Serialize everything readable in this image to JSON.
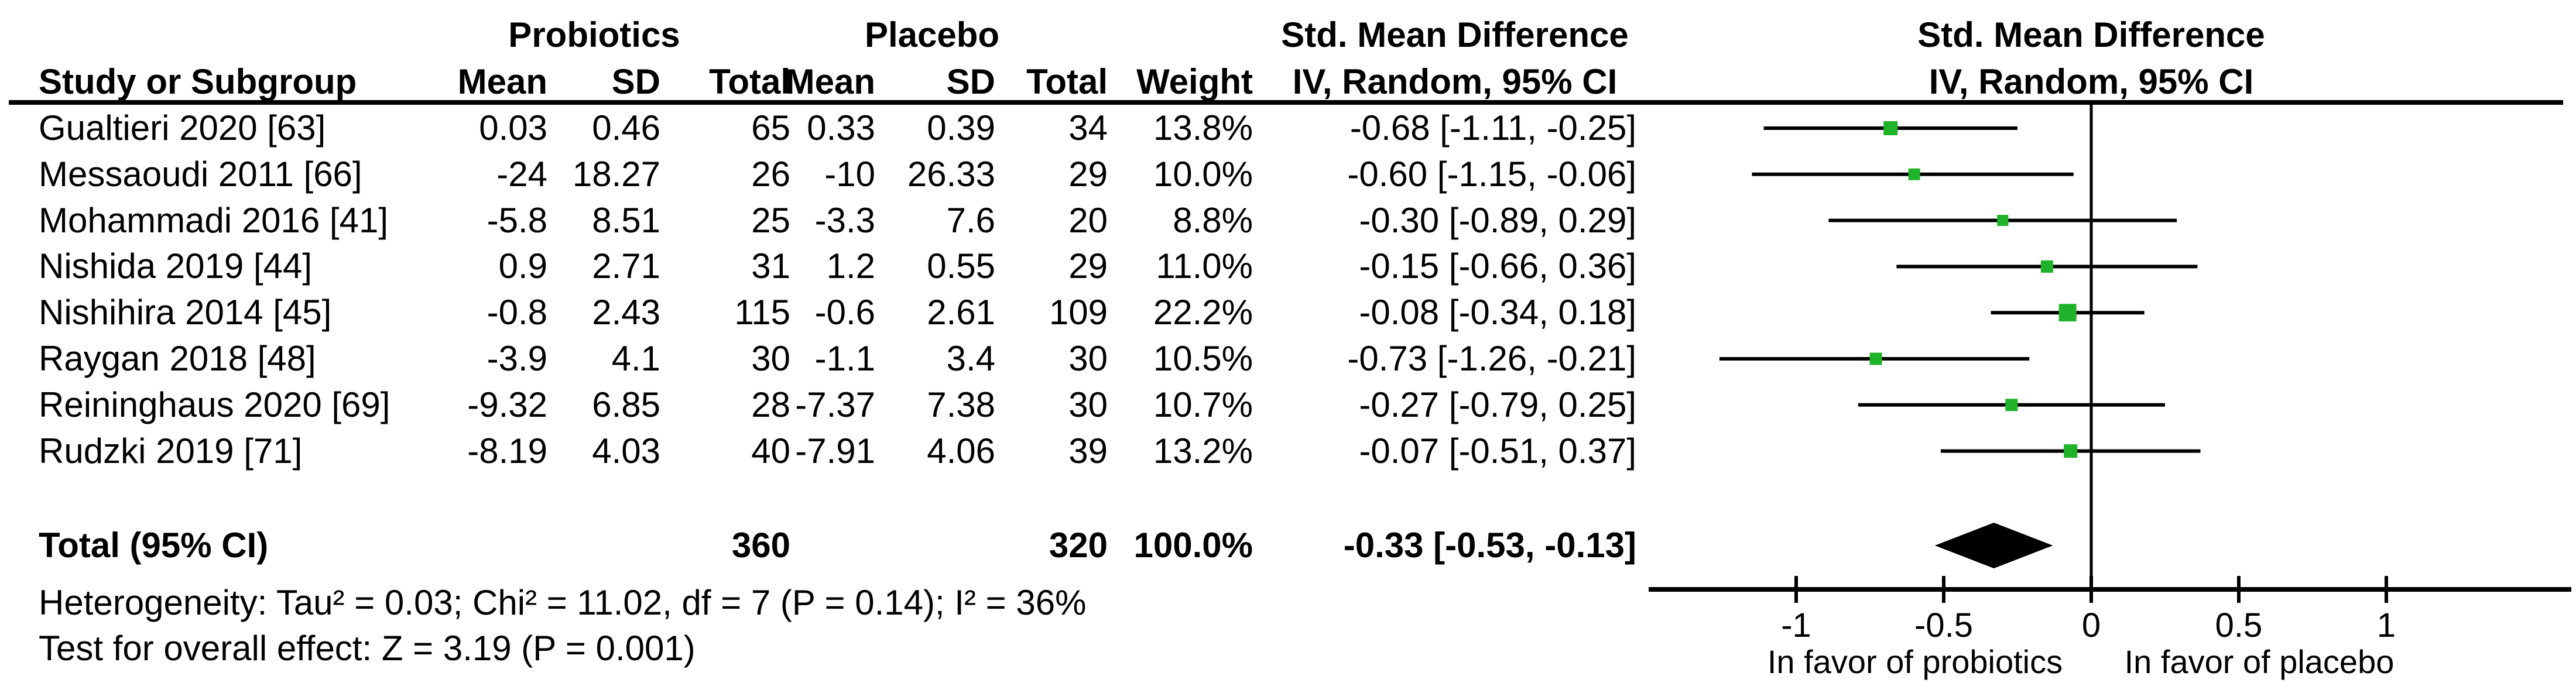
{
  "table": {
    "header_row1": {
      "probiotics": "Probiotics",
      "placebo": "Placebo",
      "smd_table": "Std. Mean Difference",
      "smd_plot": "Std. Mean Difference"
    },
    "header_row2": {
      "study": "Study or Subgroup",
      "mean1": "Mean",
      "sd1": "SD",
      "total1": "Total",
      "mean2": "Mean",
      "sd2": "SD",
      "total2": "Total",
      "weight": "Weight",
      "ci": "IV, Random, 95% CI",
      "ci_plot": "IV, Random, 95% CI"
    },
    "rows": [
      {
        "study": "Gualtieri 2020 [63]",
        "mean1": "0.03",
        "sd1": "0.46",
        "total1": "65",
        "mean2": "0.33",
        "sd2": "0.39",
        "total2": "34",
        "weight": "13.8%",
        "ci": "-0.68 [-1.11, -0.25]"
      },
      {
        "study": "Messaoudi 2011 [66]",
        "mean1": "-24",
        "sd1": "18.27",
        "total1": "26",
        "mean2": "-10",
        "sd2": "26.33",
        "total2": "29",
        "weight": "10.0%",
        "ci": "-0.60 [-1.15, -0.06]"
      },
      {
        "study": "Mohammadi 2016 [41]",
        "mean1": "-5.8",
        "sd1": "8.51",
        "total1": "25",
        "mean2": "-3.3",
        "sd2": "7.6",
        "total2": "20",
        "weight": "8.8%",
        "ci": "-0.30 [-0.89, 0.29]"
      },
      {
        "study": "Nishida 2019 [44]",
        "mean1": "0.9",
        "sd1": "2.71",
        "total1": "31",
        "mean2": "1.2",
        "sd2": "0.55",
        "total2": "29",
        "weight": "11.0%",
        "ci": "-0.15 [-0.66, 0.36]"
      },
      {
        "study": "Nishihira 2014 [45]",
        "mean1": "-0.8",
        "sd1": "2.43",
        "total1": "115",
        "mean2": "-0.6",
        "sd2": "2.61",
        "total2": "109",
        "weight": "22.2%",
        "ci": "-0.08 [-0.34, 0.18]"
      },
      {
        "study": "Raygan 2018 [48]",
        "mean1": "-3.9",
        "sd1": "4.1",
        "total1": "30",
        "mean2": "-1.1",
        "sd2": "3.4",
        "total2": "30",
        "weight": "10.5%",
        "ci": "-0.73 [-1.26, -0.21]"
      },
      {
        "study": "Reininghaus 2020 [69]",
        "mean1": "-9.32",
        "sd1": "6.85",
        "total1": "28",
        "mean2": "-7.37",
        "sd2": "7.38",
        "total2": "30",
        "weight": "10.7%",
        "ci": "-0.27 [-0.79, 0.25]"
      },
      {
        "study": "Rudzki 2019 [71]",
        "mean1": "-8.19",
        "sd1": "4.03",
        "total1": "40",
        "mean2": "-7.91",
        "sd2": "4.06",
        "total2": "39",
        "weight": "13.2%",
        "ci": "-0.07 [-0.51, 0.37]"
      }
    ],
    "total_row": {
      "label": "Total (95% CI)",
      "total1": "360",
      "total2": "320",
      "weight": "100.0%",
      "ci": "-0.33 [-0.53, -0.13]"
    },
    "heterogeneity": "Heterogeneity: Tau² = 0.03; Chi² = 11.02, df = 7 (P = 0.14); I² = 36%",
    "overall_effect": "Test for overall effect: Z = 3.19 (P = 0.001)"
  },
  "chart_data": {
    "type": "forest",
    "effect_measure": "Std. Mean Difference (IV, Random, 95% CI)",
    "studies": [
      {
        "name": "Gualtieri 2020 [63]",
        "smd": -0.68,
        "ci_low": -1.11,
        "ci_high": -0.25,
        "weight": 13.8
      },
      {
        "name": "Messaoudi 2011 [66]",
        "smd": -0.6,
        "ci_low": -1.15,
        "ci_high": -0.06,
        "weight": 10.0
      },
      {
        "name": "Mohammadi 2016 [41]",
        "smd": -0.3,
        "ci_low": -0.89,
        "ci_high": 0.29,
        "weight": 8.8
      },
      {
        "name": "Nishida 2019 [44]",
        "smd": -0.15,
        "ci_low": -0.66,
        "ci_high": 0.36,
        "weight": 11.0
      },
      {
        "name": "Nishihira 2014 [45]",
        "smd": -0.08,
        "ci_low": -0.34,
        "ci_high": 0.18,
        "weight": 22.2
      },
      {
        "name": "Raygan 2018 [48]",
        "smd": -0.73,
        "ci_low": -1.26,
        "ci_high": -0.21,
        "weight": 10.5
      },
      {
        "name": "Reininghaus 2020 [69]",
        "smd": -0.27,
        "ci_low": -0.79,
        "ci_high": 0.25,
        "weight": 10.7
      },
      {
        "name": "Rudzki 2019 [71]",
        "smd": -0.07,
        "ci_low": -0.51,
        "ci_high": 0.37,
        "weight": 13.2
      }
    ],
    "total": {
      "label": "Total (95% CI)",
      "smd": -0.33,
      "ci_low": -0.53,
      "ci_high": -0.13
    },
    "x_axis": {
      "ticks": [
        -1,
        -0.5,
        0,
        0.5,
        1
      ],
      "tick_labels": [
        "-1",
        "-0.5",
        "0",
        "0.5",
        "1"
      ],
      "min": -1.5,
      "max": 1.63,
      "left_label": "In favor of probiotics",
      "right_label": "In favor of placebo"
    },
    "marker_color": "#1fb32a",
    "line_color": "#000000"
  }
}
